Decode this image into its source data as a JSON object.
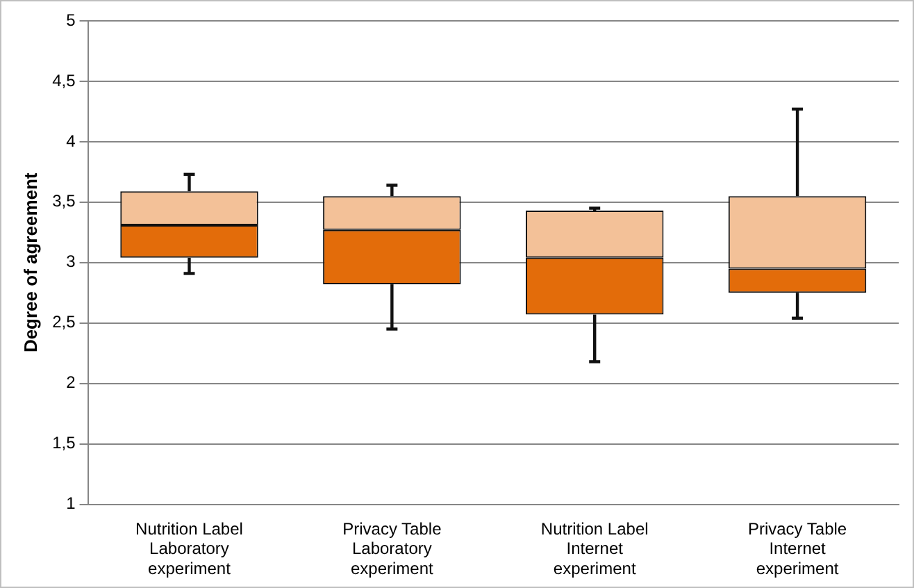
{
  "chart_data": {
    "type": "box",
    "ylabel": "Degree of agreement",
    "categories": [
      "Nutrition Label Laboratory experiment",
      "Privacy Table Laboratory experiment",
      "Nutrition Label Internet experiment",
      "Privacy Table Internet experiment"
    ],
    "boxes": [
      {
        "low": 2.91,
        "q1": 3.04,
        "median": 3.31,
        "q3": 3.59,
        "high": 3.73
      },
      {
        "low": 2.45,
        "q1": 2.82,
        "median": 3.27,
        "q3": 3.55,
        "high": 3.64
      },
      {
        "low": 2.18,
        "q1": 2.57,
        "median": 3.04,
        "q3": 3.43,
        "high": 3.45
      },
      {
        "low": 2.54,
        "q1": 2.75,
        "median": 2.95,
        "q3": 3.55,
        "high": 4.27
      }
    ],
    "colors": [
      "#e36c0a",
      "#e36c0a",
      "#e36c0a",
      "#e36c0a"
    ],
    "ylim": [
      1,
      5
    ],
    "yticks": [
      1,
      {
        "value": 1.5,
        "label": "1,5"
      },
      2,
      {
        "value": 2.5,
        "label": "2,5"
      },
      3,
      {
        "value": 3.5,
        "label": "3,5"
      },
      4,
      {
        "value": 4.5,
        "label": "4,5"
      },
      5
    ],
    "grid": "y",
    "legend": false
  }
}
